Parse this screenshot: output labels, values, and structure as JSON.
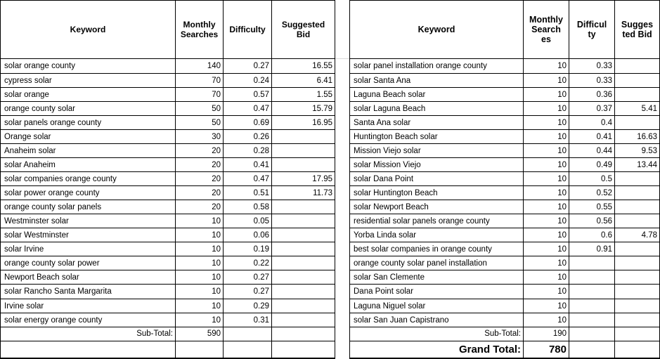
{
  "page": {
    "background": "#ffffff",
    "border_color": "#000000",
    "gridline_color": "#d9d9d9",
    "description": "Spreadsheet of solar keyword research, two tables side by side"
  },
  "tables": [
    {
      "position": "left",
      "headers": [
        "Keyword",
        "Monthly Searches",
        "Difficulty",
        "Suggested Bid"
      ],
      "rows": [
        [
          "solar orange county",
          "140",
          "0.27",
          "16.55"
        ],
        [
          "cypress solar",
          "70",
          "0.24",
          "6.41"
        ],
        [
          "solar orange",
          "70",
          "0.57",
          "1.55"
        ],
        [
          "orange county solar",
          "50",
          "0.47",
          "15.79"
        ],
        [
          "solar panels orange county",
          "50",
          "0.69",
          "16.95"
        ],
        [
          "Orange solar",
          "30",
          "0.26",
          ""
        ],
        [
          "Anaheim solar",
          "20",
          "0.28",
          ""
        ],
        [
          "solar Anaheim",
          "20",
          "0.41",
          ""
        ],
        [
          "solar companies orange county",
          "20",
          "0.47",
          "17.95"
        ],
        [
          "solar power orange county",
          "20",
          "0.51",
          "11.73"
        ],
        [
          "orange county solar panels",
          "20",
          "0.58",
          ""
        ],
        [
          "Westminster solar",
          "10",
          "0.05",
          ""
        ],
        [
          "solar Westminster",
          "10",
          "0.06",
          ""
        ],
        [
          "solar Irvine",
          "10",
          "0.19",
          ""
        ],
        [
          "orange county solar power",
          "10",
          "0.22",
          ""
        ],
        [
          "Newport Beach solar",
          "10",
          "0.27",
          ""
        ],
        [
          "solar Rancho Santa Margarita",
          "10",
          "0.27",
          ""
        ],
        [
          "Irvine solar",
          "10",
          "0.29",
          ""
        ],
        [
          "solar energy orange county",
          "10",
          "0.31",
          ""
        ]
      ],
      "subtotal": {
        "label": "Sub-Total:",
        "value": "590"
      }
    },
    {
      "position": "right",
      "headers": [
        "Keyword",
        "Monthly Searches",
        "Difficulty",
        "Suggested Bid"
      ],
      "rows": [
        [
          "solar panel installation orange county",
          "10",
          "0.33",
          ""
        ],
        [
          "solar Santa Ana",
          "10",
          "0.33",
          ""
        ],
        [
          "Laguna Beach solar",
          "10",
          "0.36",
          ""
        ],
        [
          "solar Laguna Beach",
          "10",
          "0.37",
          "5.41"
        ],
        [
          "Santa Ana solar",
          "10",
          "0.4",
          ""
        ],
        [
          "Huntington Beach solar",
          "10",
          "0.41",
          "16.63"
        ],
        [
          "Mission Viejo solar",
          "10",
          "0.44",
          "9.53"
        ],
        [
          "solar Mission Viejo",
          "10",
          "0.49",
          "13.44"
        ],
        [
          "solar Dana Point",
          "10",
          "0.5",
          ""
        ],
        [
          "solar Huntington Beach",
          "10",
          "0.52",
          ""
        ],
        [
          "solar Newport Beach",
          "10",
          "0.55",
          ""
        ],
        [
          "residential solar panels orange county",
          "10",
          "0.56",
          ""
        ],
        [
          "Yorba Linda solar",
          "10",
          "0.6",
          "4.78"
        ],
        [
          "best solar companies in orange county",
          "10",
          "0.91",
          ""
        ],
        [
          "orange county solar panel installation",
          "10",
          "",
          ""
        ],
        [
          "solar San Clemente",
          "10",
          "",
          ""
        ],
        [
          "Dana Point solar",
          "10",
          "",
          ""
        ],
        [
          "Laguna Niguel solar",
          "10",
          "",
          ""
        ],
        [
          "solar San Juan Capistrano",
          "10",
          "",
          ""
        ]
      ],
      "subtotal": {
        "label": "Sub-Total:",
        "value": "190"
      },
      "grand_total": {
        "label": "Grand Total:",
        "value": "780"
      }
    }
  ]
}
